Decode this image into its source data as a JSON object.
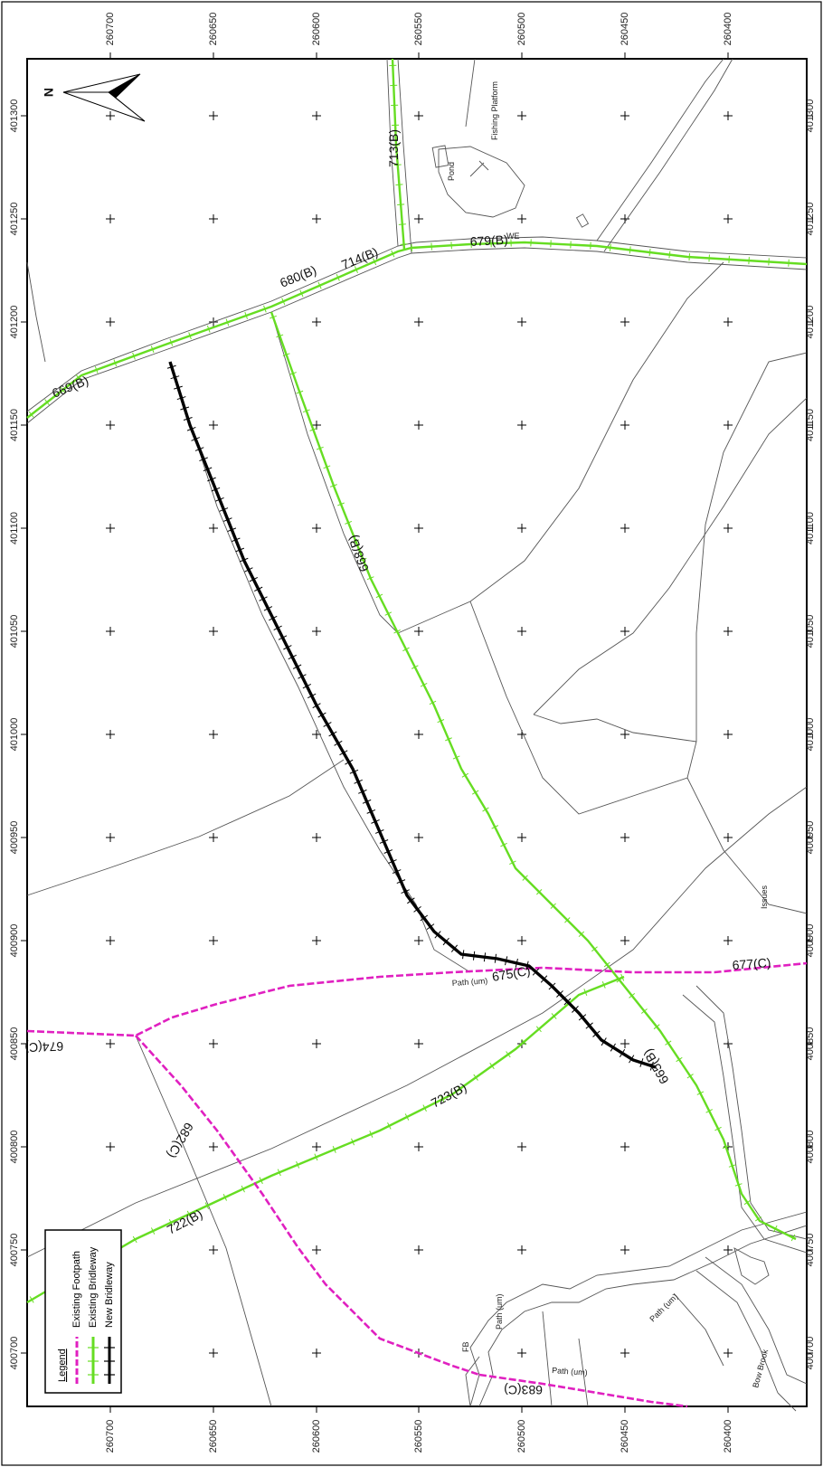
{
  "north_label": "N",
  "axis_top": [
    "260700",
    "260650",
    "260600",
    "260550",
    "260500",
    "260450",
    "260400"
  ],
  "axis_bottom": [
    "260700",
    "260650",
    "260600",
    "260550",
    "260500",
    "260450",
    "260400"
  ],
  "axis_left": [
    "401300",
    "401250",
    "401200",
    "401150",
    "401100",
    "401050",
    "401000",
    "400950",
    "400900",
    "400850",
    "400800",
    "400750",
    "400700"
  ],
  "axis_right": [
    "401300",
    "401250",
    "401200",
    "401150",
    "401100",
    "401050",
    "401000",
    "400950",
    "400900",
    "400850",
    "400800",
    "400750",
    "400700"
  ],
  "labels": {
    "r669": "669(B)",
    "r680": "680(B)",
    "r714": "714(B)",
    "r713": "713(B)",
    "r679": "679(B)",
    "r668": "668(B)",
    "r675": "675(C)",
    "r677": "677(C)",
    "r674": "674(C)",
    "r682": "682(C)",
    "r723": "723(B)",
    "r722": "722(B)",
    "r683": "683(C)",
    "r665": "665(B)",
    "path_um_1": "Path (um)",
    "path_um_2": "Path (um)",
    "path_um_3": "Path (um)",
    "path_um_4": "Path (um)",
    "fishing": "Fishing Platform",
    "pond": "Pond",
    "issues": "Issues",
    "fb": "FB",
    "bow_brook": "Bow Brook",
    "we": "WE"
  },
  "legend": {
    "title": "Legend",
    "items": [
      {
        "label": "Existing Footpath",
        "color": "#e020c0"
      },
      {
        "label": "Existing Bridleway",
        "color": "#66dd22"
      },
      {
        "label": "New Bridleway",
        "color": "#000000"
      }
    ]
  },
  "colors": {
    "footpath": "#e020c0",
    "bridleway": "#66dd22",
    "new_bridleway": "#000000",
    "base": "#555555"
  }
}
